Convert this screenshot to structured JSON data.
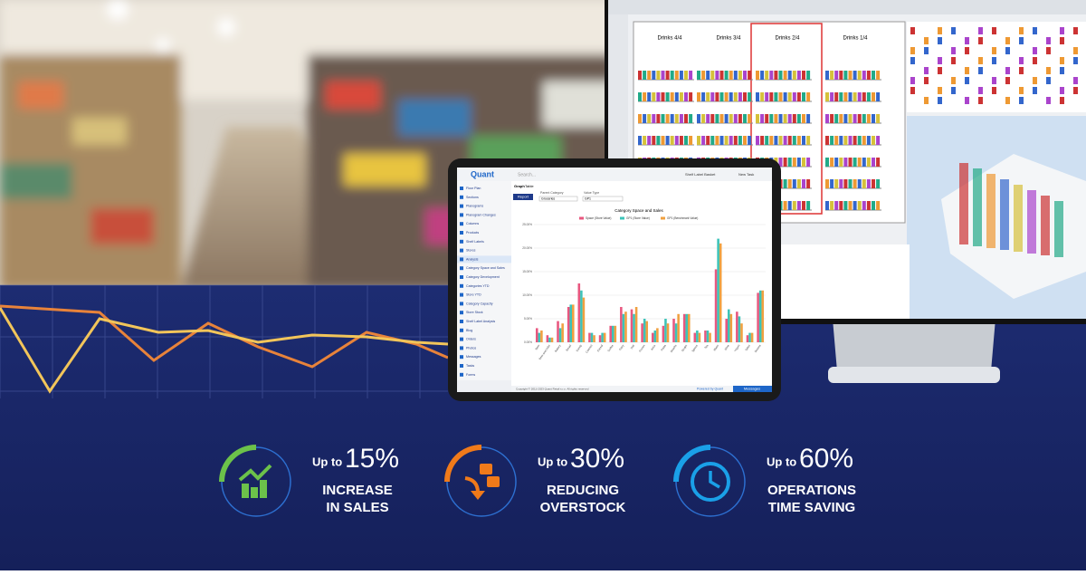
{
  "stats": [
    {
      "prefix": "Up to",
      "value": "15%",
      "line1": "INCREASE",
      "line2": "IN SALES"
    },
    {
      "prefix": "Up to",
      "value": "30%",
      "line1": "REDUCING",
      "line2": "OVERSTOCK"
    },
    {
      "prefix": "Up to",
      "value": "60%",
      "line1": "OPERATIONS",
      "line2": "TIME SAVING"
    }
  ],
  "monitor": {
    "columns": [
      "Drinks 4/4",
      "Drinks 3/4",
      "Drinks 2/4",
      "Drinks 1/4"
    ]
  },
  "tablet": {
    "logo": "Quant",
    "search": "Search...",
    "basket": "Shelf Label Basket",
    "new_task": "New Task",
    "menu": [
      "Floor Plan",
      "Sections",
      "Planograms",
      "Planogram Changes",
      "Columns",
      "Products",
      "Shelf Labels",
      "Stores",
      "Analysis",
      "Category Space and Sales",
      "Category Development",
      "Categories YTD",
      "Store YTD",
      "Category Capacity",
      "Store Stock",
      "Shelf Label Analysis",
      "Blog",
      "Orders",
      "Photos",
      "Messages",
      "Tasks",
      "Forms"
    ],
    "tabs": [
      "Graph",
      "Table"
    ],
    "report": "Report",
    "filters": [
      {
        "label": "Parent Category",
        "value": "Groceries"
      },
      {
        "label": "Value Type",
        "value": "GP1"
      }
    ],
    "footer": "Copyright © 2011-2023 Quant Retail s.r.o. All rights reserved",
    "powered": "Powered by Quant",
    "messages": "Messages",
    "chart_data": {
      "type": "bar",
      "title": "Category Space and Sales",
      "categories": [
        "Beer",
        "Beer and cider",
        "Bakery",
        "Bread",
        "Candy",
        "Canned",
        "Cereal",
        "Coffee",
        "Dairy",
        "Deli",
        "Frozen",
        "Juice",
        "Pasta",
        "Snacks",
        "Soups",
        "Spices",
        "Tea",
        "Water",
        "Wine",
        "Yogurt",
        "Other",
        "Sweets"
      ],
      "series": [
        {
          "name": "Space (Store Value)",
          "color": "#e8577f",
          "values": [
            3,
            1.5,
            4.5,
            7.5,
            12.5,
            2,
            1.5,
            3.5,
            7.5,
            7,
            4,
            2,
            3.5,
            5,
            6,
            2,
            2.5,
            15.5,
            5,
            6.5,
            1.5,
            10.5
          ]
        },
        {
          "name": "GP1 (Store Value)",
          "color": "#3cc3b8",
          "values": [
            2,
            1,
            3,
            8,
            11,
            2,
            2,
            3.5,
            6,
            6,
            5,
            2.5,
            5,
            4,
            6,
            2.5,
            2.5,
            22,
            7,
            5.5,
            2,
            11
          ]
        },
        {
          "name": "GP1 (Benchmark Value)",
          "color": "#f0a040",
          "values": [
            2.5,
            1,
            4,
            8,
            9.5,
            1.5,
            2,
            3.5,
            6.5,
            7.5,
            4.5,
            3,
            4,
            6,
            6,
            2,
            2,
            21,
            6,
            4,
            2,
            11
          ]
        }
      ],
      "ylim": [
        0,
        25
      ],
      "yticks": [
        {
          "value": 0,
          "label": "0.00%"
        },
        {
          "value": 5,
          "label": "5.00%"
        },
        {
          "value": 10,
          "label": "10.00%"
        },
        {
          "value": 15,
          "label": "15.00%"
        },
        {
          "value": 20,
          "label": "20.00%"
        },
        {
          "value": 25,
          "label": "25.00%"
        }
      ],
      "grid": true
    }
  }
}
